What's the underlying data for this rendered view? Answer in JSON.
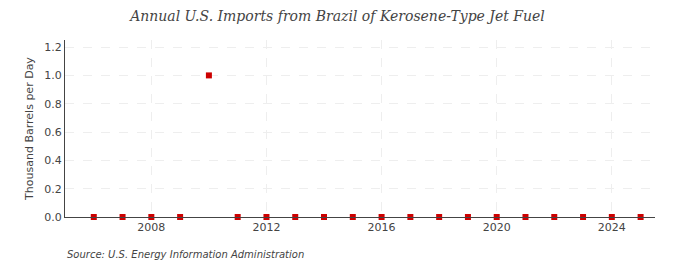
{
  "chart_data": {
    "type": "scatter",
    "title": "Annual U.S. Imports from Brazil of Kerosene-Type Jet Fuel",
    "ylabel": "Thousand Barrels per Day",
    "annotations": [
      "Source: U.S. Energy Information Administration"
    ],
    "x": [
      2006,
      2007,
      2008,
      2009,
      2010,
      2011,
      2012,
      2013,
      2014,
      2015,
      2016,
      2017,
      2018,
      2019,
      2020,
      2021,
      2022,
      2023,
      2024,
      2025
    ],
    "values": [
      0.0,
      0.0,
      0.0,
      0.0,
      1.0,
      0.0,
      0.0,
      0.0,
      0.0,
      0.0,
      0.0,
      0.0,
      0.0,
      0.0,
      0.0,
      0.0,
      0.0,
      0.0,
      0.0,
      0.0
    ],
    "color": "#cc0000",
    "marker": "square",
    "xlim": [
      2005,
      2025.5
    ],
    "xticks": [
      2008,
      2012,
      2016,
      2020,
      2024
    ],
    "ylim": [
      0.0,
      1.25
    ],
    "yticks": [
      {
        "value": 0,
        "label": "0.0"
      },
      0.2,
      0.4,
      0.6,
      0.8,
      {
        "value": 1,
        "label": "1.0"
      },
      1.2
    ],
    "grid": true
  }
}
